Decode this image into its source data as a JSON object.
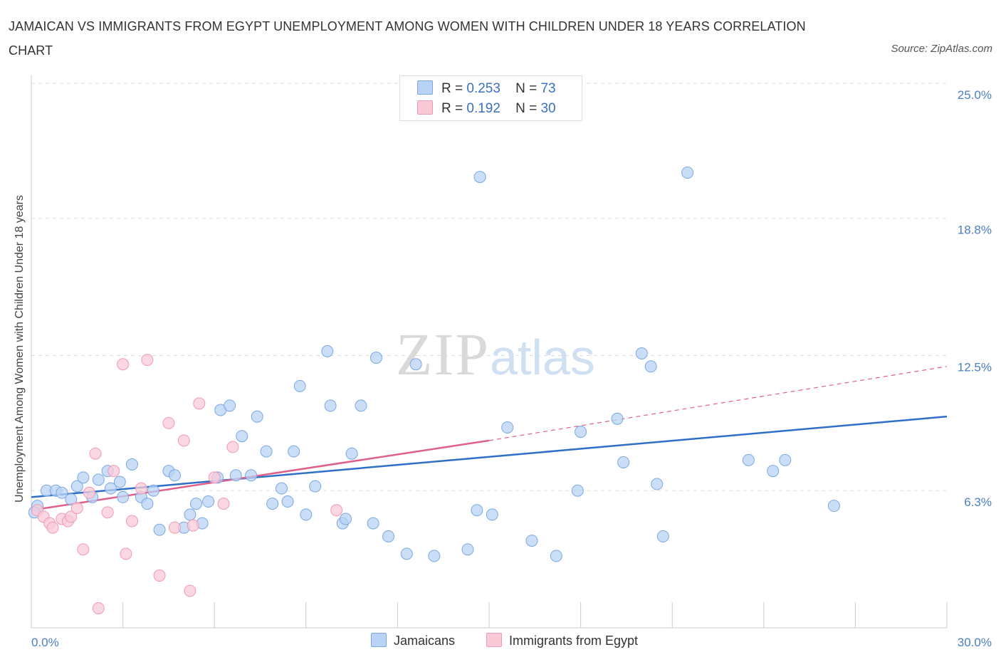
{
  "title": "JAMAICAN VS IMMIGRANTS FROM EGYPT UNEMPLOYMENT AMONG WOMEN WITH CHILDREN UNDER 18 YEARS CORRELATION CHART",
  "source": "Source: ZipAtlas.com",
  "watermark": {
    "zip": "ZIP",
    "atlas": "atlas"
  },
  "legend_stats": [
    {
      "r_label": "R =",
      "r_value": "0.253",
      "n_label": "N =",
      "n_value": "73"
    },
    {
      "r_label": "R =",
      "r_value": "0.192",
      "n_label": "N =",
      "n_value": "30"
    }
  ],
  "bottom_legend": [
    "Jamaicans",
    "Immigrants from Egypt"
  ],
  "colors": {
    "jamaicans_fill": "#b8d3f5",
    "jamaicans_stroke": "#7aa8e0",
    "jamaicans_line": "#2f6fc7",
    "egypt_fill": "#f9c9d8",
    "egypt_stroke": "#ee9ab5",
    "egypt_line": "#e0608a",
    "grid": "#dddddd",
    "axis_text": "#4a7fc1"
  },
  "chart_data": {
    "type": "scatter",
    "title": "JAMAICAN VS IMMIGRANTS FROM EGYPT UNEMPLOYMENT AMONG WOMEN WITH CHILDREN UNDER 18 YEARS CORRELATION CHART",
    "xlabel": "",
    "ylabel": "Unemployment Among Women with Children Under 18 years",
    "xlim": [
      0,
      30
    ],
    "ylim": [
      0,
      25
    ],
    "x_tick_labels": [
      "0.0%",
      "30.0%"
    ],
    "y_tick_labels": [
      "6.3%",
      "12.5%",
      "18.8%",
      "25.0%"
    ],
    "y_ticks": [
      6.3,
      12.5,
      18.8,
      25.0
    ],
    "grid": "horizontal dashed",
    "legend_position": "top-center",
    "series": [
      {
        "name": "Jamaicans",
        "r": 0.253,
        "n": 73,
        "trend": {
          "x": [
            0,
            30
          ],
          "y": [
            6.0,
            9.7
          ]
        },
        "points": [
          [
            0.2,
            5.6
          ],
          [
            0.5,
            6.3
          ],
          [
            0.8,
            6.3
          ],
          [
            1.0,
            6.2
          ],
          [
            1.3,
            5.9
          ],
          [
            1.5,
            6.5
          ],
          [
            1.7,
            6.9
          ],
          [
            2.0,
            6.0
          ],
          [
            2.2,
            6.8
          ],
          [
            2.5,
            7.2
          ],
          [
            2.6,
            6.4
          ],
          [
            2.9,
            6.7
          ],
          [
            3.0,
            6.0
          ],
          [
            3.3,
            7.5
          ],
          [
            3.6,
            6.0
          ],
          [
            3.8,
            5.7
          ],
          [
            4.0,
            6.3
          ],
          [
            4.2,
            4.5
          ],
          [
            4.5,
            7.2
          ],
          [
            4.7,
            7.0
          ],
          [
            5.0,
            4.6
          ],
          [
            5.2,
            5.2
          ],
          [
            5.4,
            5.7
          ],
          [
            5.6,
            4.8
          ],
          [
            5.8,
            5.8
          ],
          [
            6.1,
            6.9
          ],
          [
            6.2,
            10.0
          ],
          [
            6.5,
            10.2
          ],
          [
            6.7,
            7.0
          ],
          [
            6.9,
            8.8
          ],
          [
            7.2,
            7.0
          ],
          [
            7.4,
            9.7
          ],
          [
            7.7,
            8.1
          ],
          [
            7.9,
            5.7
          ],
          [
            8.2,
            6.4
          ],
          [
            8.4,
            5.8
          ],
          [
            8.6,
            8.1
          ],
          [
            8.8,
            11.1
          ],
          [
            9.0,
            5.2
          ],
          [
            9.3,
            6.5
          ],
          [
            9.7,
            12.7
          ],
          [
            9.8,
            10.2
          ],
          [
            10.2,
            4.8
          ],
          [
            10.3,
            5.0
          ],
          [
            10.5,
            8.0
          ],
          [
            10.8,
            10.2
          ],
          [
            11.2,
            4.8
          ],
          [
            11.3,
            12.4
          ],
          [
            11.7,
            4.2
          ],
          [
            12.3,
            3.4
          ],
          [
            12.6,
            12.1
          ],
          [
            13.2,
            3.3
          ],
          [
            14.3,
            3.6
          ],
          [
            14.6,
            5.4
          ],
          [
            14.7,
            20.7
          ],
          [
            15.1,
            5.2
          ],
          [
            15.6,
            9.2
          ],
          [
            16.4,
            4.0
          ],
          [
            17.2,
            3.3
          ],
          [
            17.9,
            6.3
          ],
          [
            18.0,
            9.0
          ],
          [
            19.2,
            9.6
          ],
          [
            19.4,
            7.6
          ],
          [
            20.0,
            12.6
          ],
          [
            20.3,
            12.0
          ],
          [
            20.5,
            6.6
          ],
          [
            20.7,
            4.2
          ],
          [
            21.5,
            20.9
          ],
          [
            23.5,
            7.7
          ],
          [
            24.3,
            7.2
          ],
          [
            24.7,
            7.7
          ],
          [
            26.3,
            5.6
          ],
          [
            0.1,
            5.3
          ]
        ]
      },
      {
        "name": "Immigrants from Egypt",
        "r": 0.192,
        "n": 30,
        "trend": {
          "x": [
            0,
            15
          ],
          "y": [
            5.4,
            8.6
          ],
          "dashed_to": {
            "x": 30,
            "y": 12.0
          }
        },
        "points": [
          [
            0.2,
            5.4
          ],
          [
            0.4,
            5.1
          ],
          [
            0.6,
            4.8
          ],
          [
            0.7,
            4.6
          ],
          [
            1.0,
            5.0
          ],
          [
            1.2,
            4.9
          ],
          [
            1.3,
            5.1
          ],
          [
            1.5,
            5.5
          ],
          [
            1.7,
            3.6
          ],
          [
            1.9,
            6.2
          ],
          [
            2.1,
            8.0
          ],
          [
            2.2,
            0.9
          ],
          [
            2.5,
            5.3
          ],
          [
            2.7,
            7.2
          ],
          [
            3.0,
            12.1
          ],
          [
            3.1,
            3.4
          ],
          [
            3.3,
            4.9
          ],
          [
            3.6,
            6.4
          ],
          [
            3.8,
            12.3
          ],
          [
            4.2,
            2.4
          ],
          [
            4.5,
            9.4
          ],
          [
            4.7,
            4.6
          ],
          [
            5.0,
            8.6
          ],
          [
            5.2,
            1.7
          ],
          [
            5.3,
            4.7
          ],
          [
            5.5,
            10.3
          ],
          [
            6.0,
            6.9
          ],
          [
            6.3,
            5.7
          ],
          [
            6.6,
            8.3
          ],
          [
            10.0,
            5.4
          ]
        ]
      }
    ]
  }
}
